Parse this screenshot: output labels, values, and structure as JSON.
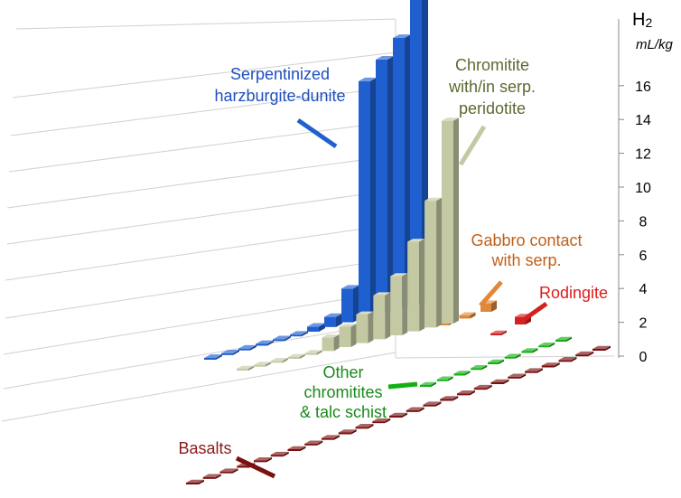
{
  "chart_data": {
    "type": "bar",
    "title": "",
    "y_unit_main": "H",
    "y_unit_sub": "2",
    "y_unit_line2": "mL/kg",
    "ylim": [
      0,
      18
    ],
    "y_ticks": [
      "0",
      "2",
      "4",
      "6",
      "8",
      "10",
      "12",
      "14",
      "16"
    ],
    "grid": true,
    "series": [
      {
        "name": "Serpentinized harzburgite-dunite",
        "color": "#1f5fd0",
        "label_color": "#1f4fbf",
        "label_lines": [
          "Serpentinized",
          "harzburgite-dunite"
        ],
        "values": [
          0.05,
          0.05,
          0.05,
          0.05,
          0.05,
          0.05,
          0.3,
          0.6,
          2.0,
          14.0,
          15.0,
          16.0,
          19.0
        ]
      },
      {
        "name": "Chromitite with/in serp. peridotite",
        "color": "#c4c9a4",
        "label_color": "#5a6a30",
        "label_lines": [
          "Chromitite",
          "with/in serp.",
          "peridotite"
        ],
        "values": [
          0.05,
          0.05,
          0.05,
          0.05,
          0.05,
          0.8,
          1.2,
          1.7,
          2.6,
          3.5,
          5.3,
          7.5,
          12.0
        ]
      },
      {
        "name": "Gabbro contact with serp.",
        "color": "#e0883a",
        "label_color": "#c0601a",
        "label_lines": [
          "Gabbro contact",
          "with serp."
        ],
        "values": [
          0.1,
          0.2,
          0.5
        ]
      },
      {
        "name": "Rodingite",
        "color": "#d42020",
        "label_color": "#e01a1a",
        "label_lines": [
          "Rodingite"
        ],
        "values": [
          0.1,
          0.45
        ]
      },
      {
        "name": "Other chromitites & talc schist",
        "color": "#12b012",
        "label_color": "#1a8a1a",
        "label_lines": [
          "Other",
          "chromitites",
          "& talc schist"
        ],
        "values": [
          0.05,
          0.05,
          0.05,
          0.05,
          0.05,
          0.05,
          0.05,
          0.05,
          0.05
        ]
      },
      {
        "name": "Basalts",
        "color": "#7a1010",
        "label_color": "#8a1a1a",
        "label_lines": [
          "Basalts"
        ],
        "values": [
          0.05,
          0.05,
          0.05,
          0.05,
          0.05,
          0.05,
          0.05,
          0.05,
          0.05,
          0.05,
          0.05,
          0.05,
          0.05,
          0.05,
          0.05,
          0.05,
          0.05,
          0.05,
          0.05,
          0.05,
          0.05,
          0.05,
          0.05,
          0.05,
          0.05
        ]
      }
    ]
  }
}
